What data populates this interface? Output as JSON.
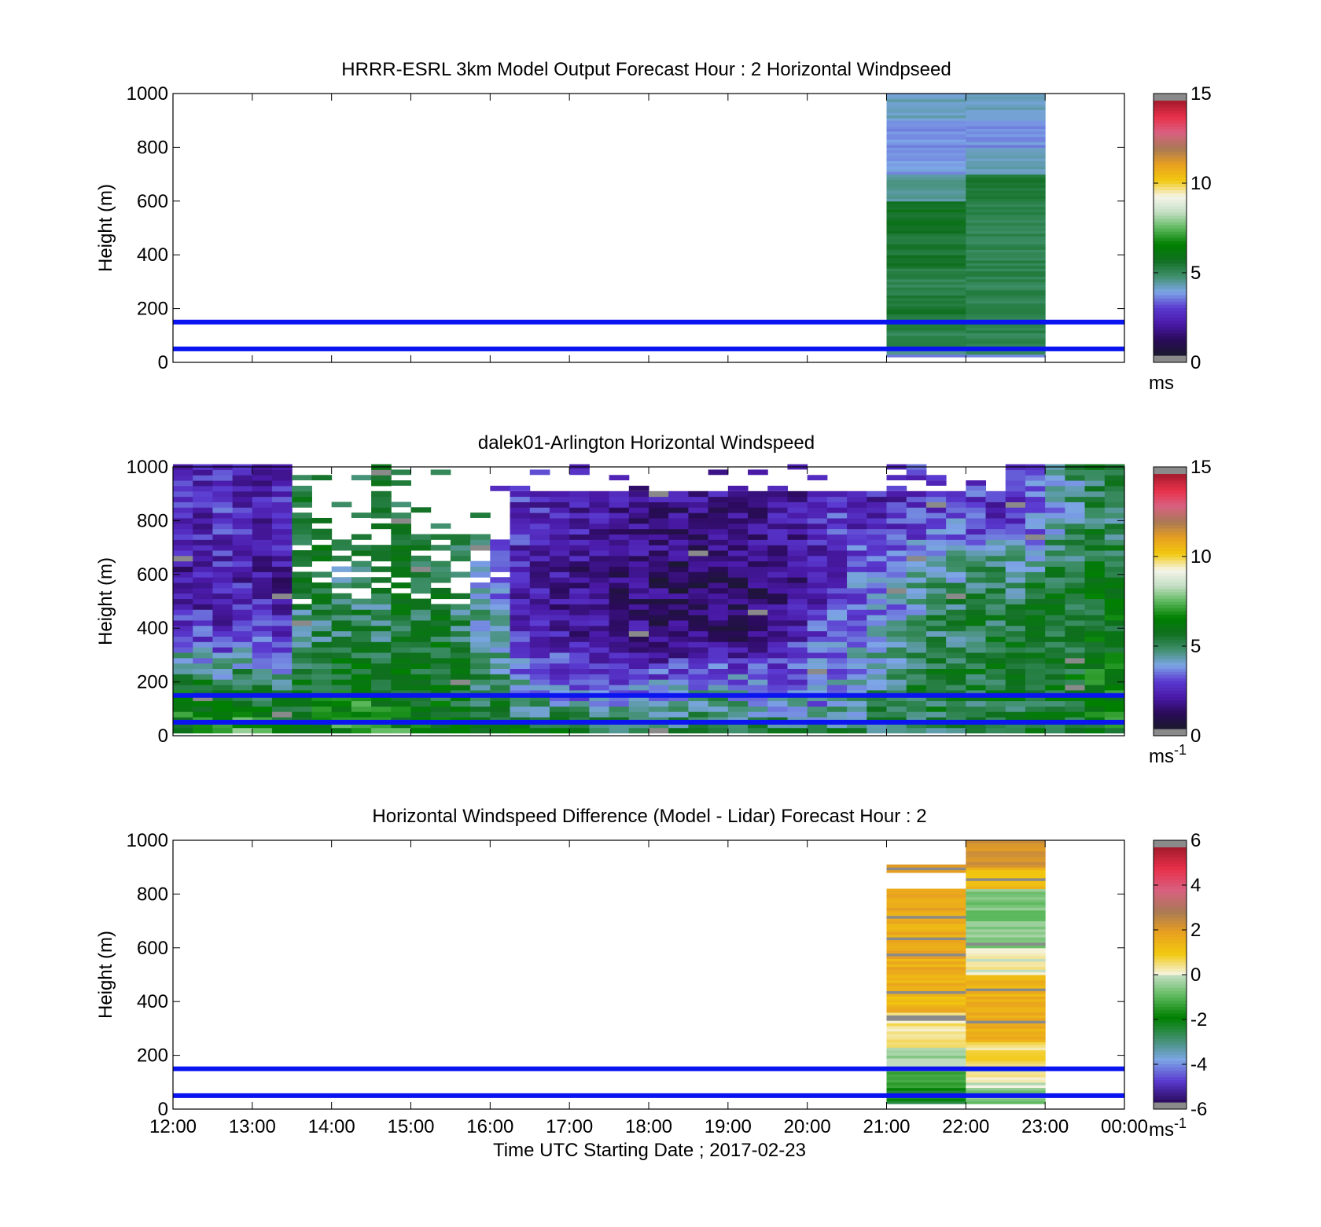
{
  "chart_data": [
    {
      "type": "heatmap",
      "title": "HRRR-ESRL 3km Model Output   Forecast Hour : 2 Horizontal Windpseed",
      "ylabel": "Height (m)",
      "xlabel": "",
      "xlim": [
        12,
        24
      ],
      "ylim": [
        0,
        1000
      ],
      "yticks": [
        "0",
        "200",
        "400",
        "600",
        "800",
        "1000"
      ],
      "colorbar": {
        "ticks": [
          "0",
          "5",
          "10",
          "15"
        ],
        "range": [
          0,
          15
        ],
        "unit": "ms",
        "unit_sup": ""
      },
      "reference_lines_m": [
        50,
        150
      ],
      "columns": [
        {
          "x0": 21,
          "x1": 22,
          "bins": [
            {
              "y0": 20,
              "y1": 30,
              "v": 3.6
            },
            {
              "y0": 30,
              "y1": 60,
              "v": 4.5
            },
            {
              "y0": 60,
              "y1": 120,
              "v": 5.0
            },
            {
              "y0": 120,
              "y1": 180,
              "v": 5.2
            },
            {
              "y0": 180,
              "y1": 250,
              "v": 5.4
            },
            {
              "y0": 250,
              "y1": 350,
              "v": 5.0
            },
            {
              "y0": 350,
              "y1": 500,
              "v": 5.4
            },
            {
              "y0": 500,
              "y1": 600,
              "v": 5.6
            },
            {
              "y0": 600,
              "y1": 700,
              "v": 4.3
            },
            {
              "y0": 700,
              "y1": 900,
              "v": 3.6
            },
            {
              "y0": 900,
              "y1": 1000,
              "v": 4.1
            }
          ]
        },
        {
          "x0": 22,
          "x1": 23,
          "bins": [
            {
              "y0": 20,
              "y1": 30,
              "v": 3.6
            },
            {
              "y0": 30,
              "y1": 150,
              "v": 5.0
            },
            {
              "y0": 150,
              "y1": 600,
              "v": 5.0
            },
            {
              "y0": 600,
              "y1": 700,
              "v": 5.3
            },
            {
              "y0": 700,
              "y1": 800,
              "v": 4.2
            },
            {
              "y0": 800,
              "y1": 900,
              "v": 3.6
            },
            {
              "y0": 900,
              "y1": 1000,
              "v": 4.1
            }
          ]
        }
      ]
    },
    {
      "type": "heatmap",
      "title": "dalek01-Arlington  Horizontal Windspeed",
      "ylabel": "Height (m)",
      "xlabel": "",
      "xlim": [
        12,
        24
      ],
      "ylim": [
        0,
        1000
      ],
      "yticks": [
        "0",
        "200",
        "400",
        "600",
        "800",
        "1000"
      ],
      "colorbar": {
        "ticks": [
          "0",
          "5",
          "10",
          "15"
        ],
        "range": [
          0,
          15
        ],
        "unit": "ms",
        "unit_sup": "-1"
      },
      "reference_lines_m": [
        50,
        150
      ],
      "time_start": 12.0,
      "time_step_h": 0.25,
      "height_step_m": 20,
      "column_top_m": [
        1000,
        1000,
        1000,
        1000,
        1000,
        1000,
        920,
        760,
        760,
        760,
        1000,
        820,
        740,
        740,
        740,
        740,
        740,
        900,
        900,
        900,
        900,
        900,
        900,
        900,
        900,
        900,
        900,
        900,
        900,
        900,
        900,
        900,
        900,
        900,
        900,
        900,
        900,
        900,
        900,
        900,
        900,
        900,
        1000,
        1000,
        1000,
        1000,
        1000,
        1000
      ],
      "column_profiles": [
        [
          6.5,
          6.0,
          3.2,
          1.5,
          2.5
        ],
        [
          6.8,
          6.0,
          2.8,
          1.8,
          2.3
        ],
        [
          7.0,
          5.5,
          2.5,
          2.0,
          2.6
        ],
        [
          7.2,
          5.8,
          2.8,
          2.2,
          2.4
        ],
        [
          6.8,
          5.2,
          3.0,
          1.8,
          2.2
        ],
        [
          6.5,
          5.0,
          2.6,
          1.6,
          2.5
        ],
        [
          6.6,
          5.5,
          4.5,
          5.0,
          5.0
        ],
        [
          6.9,
          5.8,
          4.8,
          5.2,
          5.5
        ],
        [
          7.0,
          6.0,
          5.2,
          4.0,
          5.0
        ],
        [
          7.8,
          6.2,
          5.4,
          4.5,
          5.2
        ],
        [
          7.5,
          5.8,
          5.0,
          4.8,
          5.0
        ],
        [
          6.8,
          6.0,
          5.5,
          5.2,
          5.0
        ],
        [
          6.5,
          5.8,
          5.2,
          4.6,
          5.5
        ],
        [
          6.6,
          5.6,
          5.4,
          5.0,
          5.0
        ],
        [
          6.4,
          5.5,
          5.0,
          4.5,
          4.8
        ],
        [
          6.2,
          5.0,
          4.6,
          3.5,
          4.5
        ],
        [
          6.0,
          4.8,
          4.0,
          3.0,
          3.0
        ],
        [
          5.9,
          4.0,
          2.8,
          2.0,
          2.5
        ],
        [
          5.8,
          3.8,
          2.5,
          1.8,
          2.3
        ],
        [
          5.7,
          3.5,
          2.2,
          1.6,
          2.2
        ],
        [
          5.8,
          3.2,
          2.0,
          1.5,
          2.0
        ],
        [
          5.6,
          3.0,
          1.8,
          1.4,
          1.9
        ],
        [
          5.5,
          3.2,
          1.7,
          1.2,
          1.8
        ],
        [
          5.4,
          3.4,
          1.6,
          1.2,
          1.7
        ],
        [
          5.2,
          3.6,
          1.4,
          1.1,
          1.6
        ],
        [
          5.3,
          3.8,
          1.3,
          1.0,
          1.5
        ],
        [
          5.2,
          4.0,
          1.2,
          1.0,
          1.6
        ],
        [
          5.1,
          4.2,
          1.3,
          0.9,
          1.7
        ],
        [
          5.0,
          4.0,
          1.4,
          1.0,
          1.6
        ],
        [
          5.0,
          3.8,
          1.6,
          1.1,
          1.5
        ],
        [
          5.2,
          3.6,
          1.8,
          1.3,
          1.8
        ],
        [
          5.2,
          3.4,
          2.5,
          1.6,
          2.0
        ],
        [
          5.0,
          3.2,
          3.0,
          2.0,
          2.2
        ],
        [
          5.0,
          3.5,
          3.2,
          2.6,
          2.6
        ],
        [
          4.9,
          4.2,
          3.6,
          3.0,
          2.5
        ],
        [
          5.0,
          4.5,
          3.8,
          3.2,
          2.2
        ],
        [
          5.2,
          5.0,
          4.2,
          3.6,
          2.4
        ],
        [
          5.1,
          5.2,
          4.8,
          4.0,
          2.6
        ],
        [
          5.0,
          5.4,
          5.0,
          4.6,
          2.8
        ],
        [
          5.2,
          5.2,
          5.0,
          4.6,
          3.0
        ],
        [
          5.0,
          5.4,
          5.2,
          5.0,
          2.6
        ],
        [
          5.3,
          5.6,
          5.3,
          5.2,
          2.5
        ],
        [
          5.0,
          5.4,
          5.2,
          4.8,
          2.8
        ],
        [
          5.2,
          5.5,
          5.4,
          5.2,
          3.2
        ],
        [
          5.3,
          5.6,
          5.6,
          5.4,
          4.0
        ],
        [
          5.5,
          5.8,
          5.5,
          5.4,
          4.5
        ],
        [
          6.0,
          6.2,
          6.0,
          5.6,
          5.0
        ],
        [
          6.2,
          6.4,
          6.0,
          5.5,
          4.8
        ]
      ]
    },
    {
      "type": "heatmap",
      "title": "Horizontal Windspeed Difference (Model - Lidar) Forecast Hour : 2",
      "ylabel": "Height (m)",
      "xlabel": "Time UTC  Starting Date ; 2017-02-23",
      "xlim": [
        12,
        24
      ],
      "ylim": [
        0,
        1000
      ],
      "xticks": [
        "12:00",
        "13:00",
        "14:00",
        "15:00",
        "16:00",
        "17:00",
        "18:00",
        "19:00",
        "20:00",
        "21:00",
        "22:00",
        "23:00",
        "00:00"
      ],
      "yticks": [
        "0",
        "200",
        "400",
        "600",
        "800",
        "1000"
      ],
      "colorbar": {
        "ticks": [
          "-6",
          "-4",
          "-2",
          "0",
          "2",
          "4",
          "6"
        ],
        "range": [
          -6,
          6
        ],
        "unit": "ms",
        "unit_sup": "-1"
      },
      "reference_lines_m": [
        50,
        150
      ],
      "columns": [
        {
          "x0": 21,
          "x1": 22,
          "bins": [
            {
              "y0": 20,
              "y1": 80,
              "v": -2.2
            },
            {
              "y0": 80,
              "y1": 150,
              "v": -1.2
            },
            {
              "y0": 150,
              "y1": 230,
              "v": -0.3
            },
            {
              "y0": 230,
              "y1": 360,
              "v": 0.4
            },
            {
              "y0": 360,
              "y1": 500,
              "v": 1.5
            },
            {
              "y0": 500,
              "y1": 820,
              "v": 1.7
            },
            {
              "y0": 880,
              "y1": 910,
              "v": 2.0
            }
          ]
        },
        {
          "x0": 22,
          "x1": 23,
          "bins": [
            {
              "y0": 20,
              "y1": 80,
              "v": -0.8
            },
            {
              "y0": 80,
              "y1": 150,
              "v": 0.2
            },
            {
              "y0": 150,
              "y1": 250,
              "v": 0.6
            },
            {
              "y0": 250,
              "y1": 500,
              "v": 1.6
            },
            {
              "y0": 500,
              "y1": 600,
              "v": 0.4
            },
            {
              "y0": 600,
              "y1": 700,
              "v": -0.4
            },
            {
              "y0": 700,
              "y1": 820,
              "v": -0.6
            },
            {
              "y0": 820,
              "y1": 900,
              "v": 1.4
            },
            {
              "y0": 900,
              "y1": 1000,
              "v": 2.2
            }
          ]
        }
      ]
    }
  ],
  "colors": {
    "reference_line": "#0a14f0",
    "colormap_speed": [
      "#1a1a2e",
      "#2a0a5a",
      "#4a1aa8",
      "#5a3ad0",
      "#7da6e6",
      "#3f8f6a",
      "#0f6f1f",
      "#008000",
      "#5cb85c",
      "#c5dfc5",
      "#f5f5e8",
      "#f2c80f",
      "#e8a020",
      "#a97955",
      "#d86080",
      "#e8304a",
      "#a31b2c"
    ],
    "colormap_diff_neg": [
      "#2a0a5a",
      "#5a3ad0",
      "#7da6e6",
      "#3f8f6a",
      "#008000",
      "#5cb85c",
      "#c5dfc5"
    ],
    "colormap_diff_pos": [
      "#f5f5e8",
      "#f2c80f",
      "#e8a020",
      "#a97955",
      "#d86080",
      "#e8304a",
      "#a31b2c"
    ],
    "nan_gray": "#8a8a8a"
  }
}
